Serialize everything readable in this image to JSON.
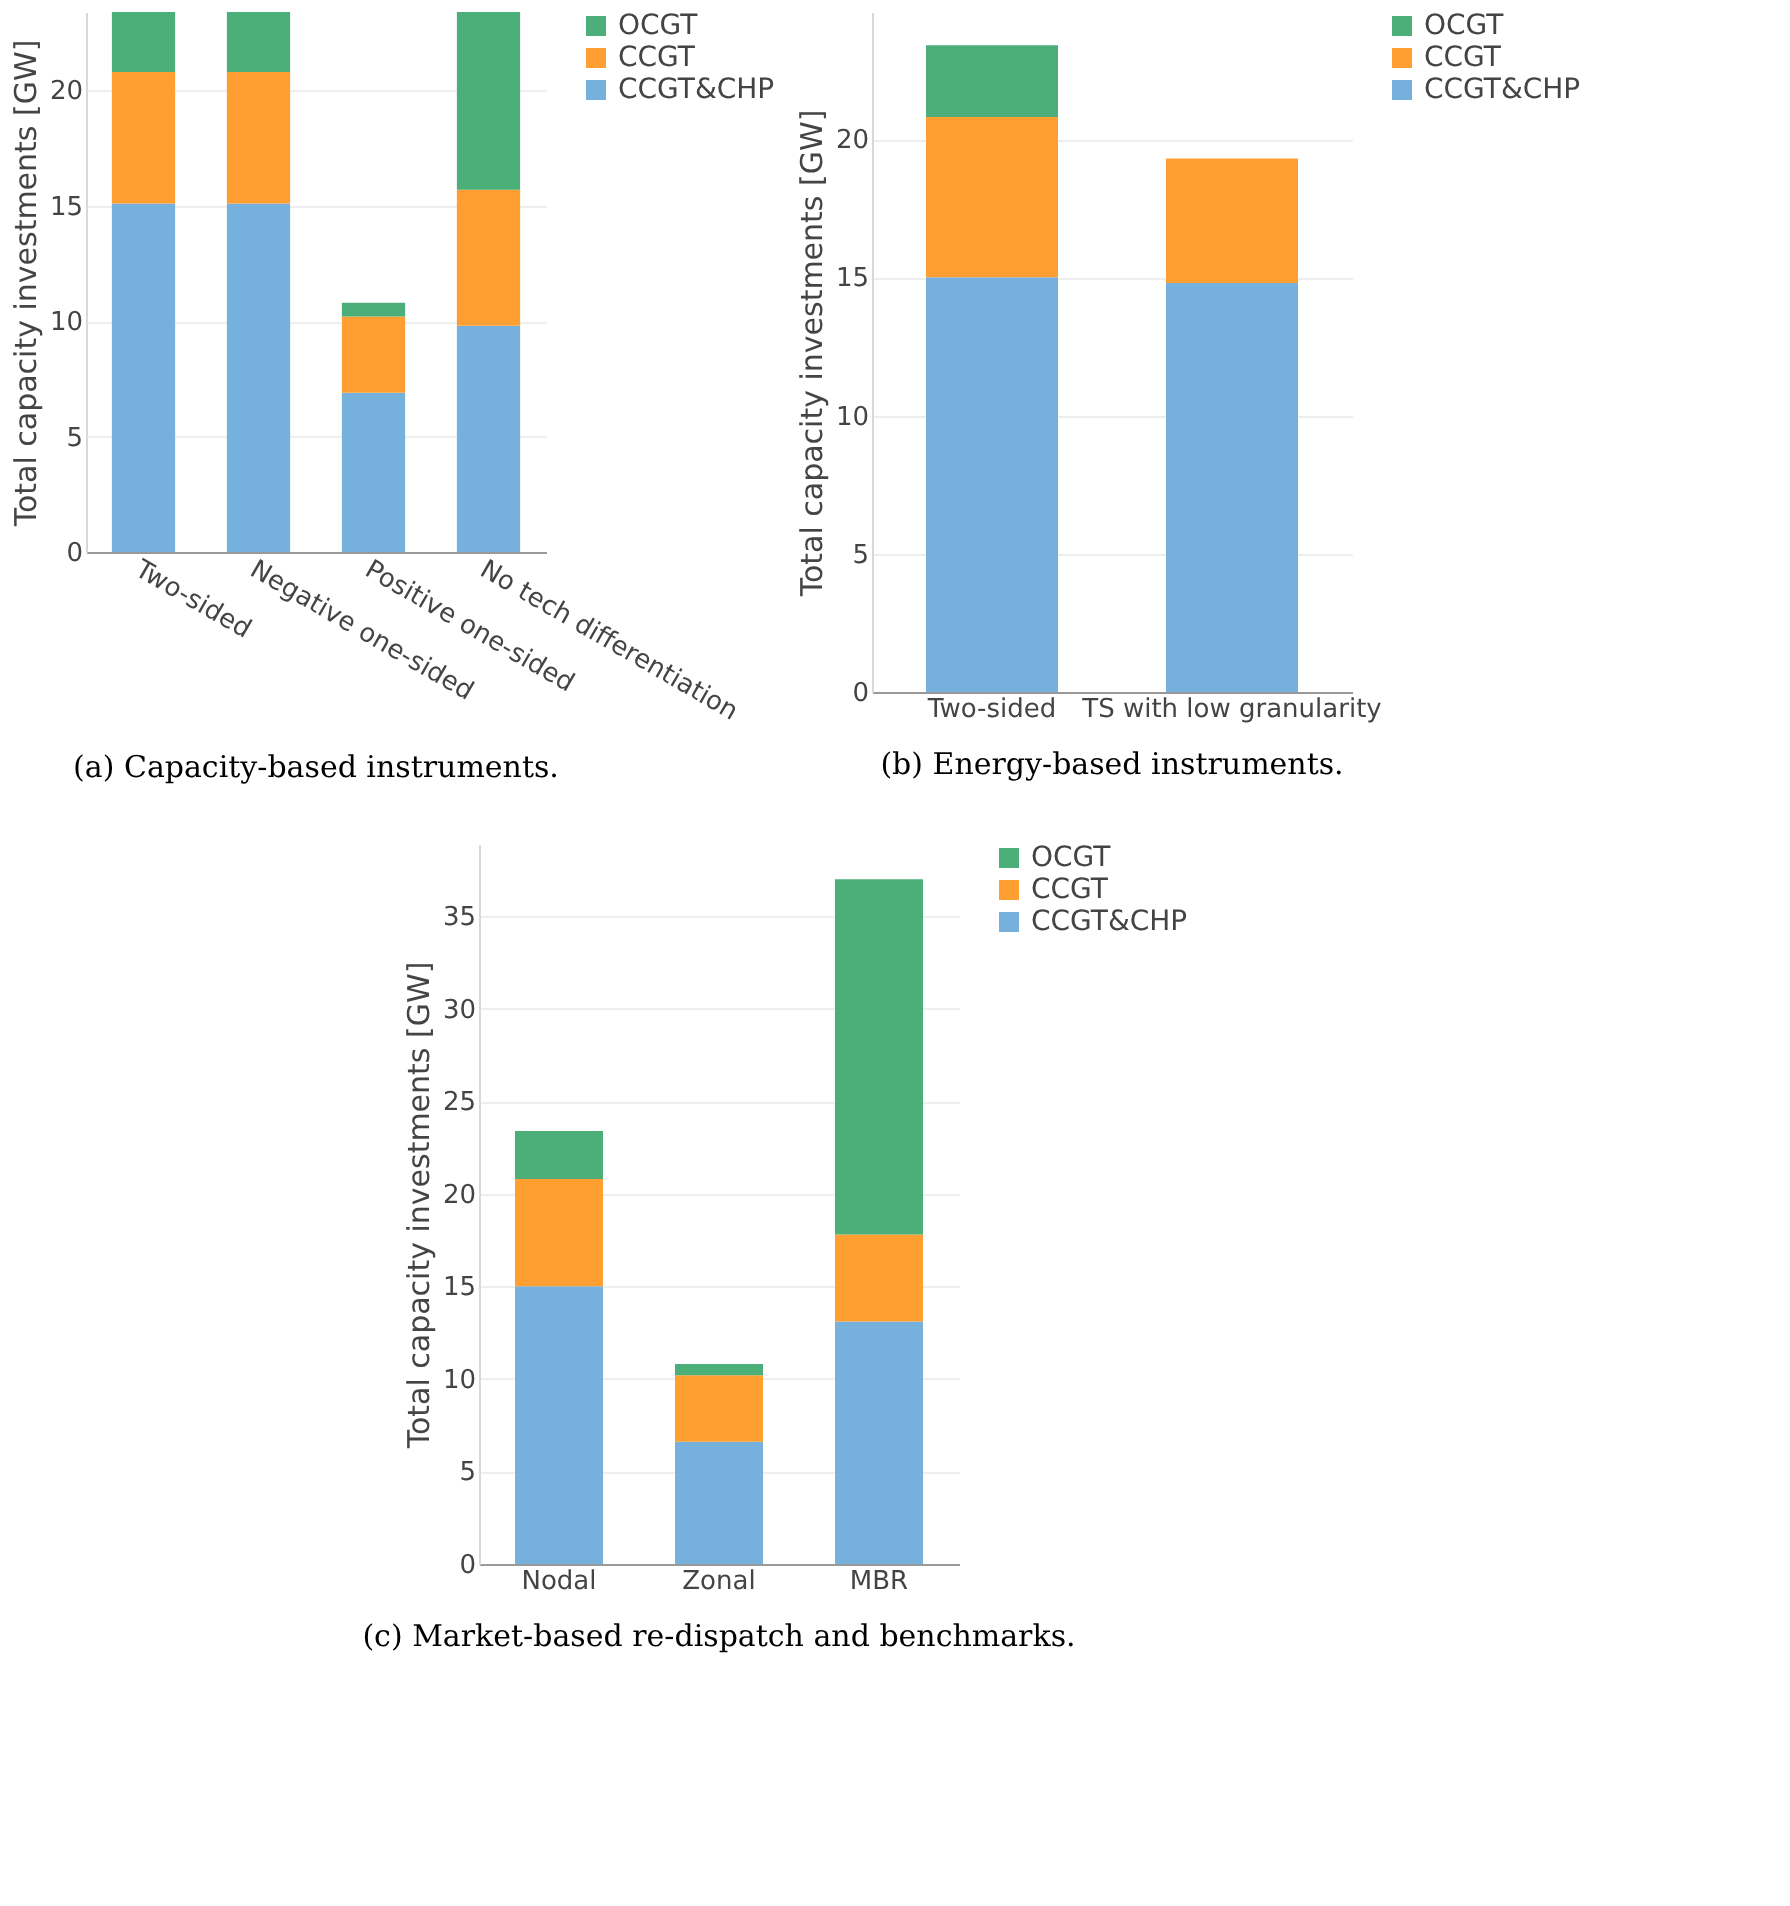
{
  "chart_data": [
    {
      "type": "bar",
      "stacked": true,
      "categories": [
        "Two-sided",
        "Negative one-sided",
        "Positive one-sided",
        "No tech differentiation"
      ],
      "ylabel": "Total capacity investments [GW]",
      "ylim": [
        0,
        23.4
      ],
      "yticks": [
        0,
        5,
        10,
        15,
        20
      ],
      "grid": "y",
      "legend": "top right",
      "annotations": [
        "(a) Capacity-based instruments."
      ],
      "series": [
        {
          "name": "CCGT&CHP",
          "color": "#76b0dc",
          "values": [
            15.1,
            15.1,
            6.9,
            9.8
          ]
        },
        {
          "name": "CCGT",
          "color": "#ff9f32",
          "values": [
            5.7,
            5.7,
            3.3,
            5.9
          ]
        },
        {
          "name": "OCGT",
          "color": "#4caf7a",
          "values": [
            2.6,
            2.6,
            0.6,
            7.7
          ]
        }
      ]
    },
    {
      "type": "bar",
      "stacked": true,
      "categories": [
        "Two-sided",
        "TS with low granularity"
      ],
      "ylabel": "Total capacity investments [GW]",
      "ylim": [
        0,
        24.6
      ],
      "yticks": [
        0,
        5,
        10,
        15,
        20
      ],
      "grid": "y",
      "legend": "top right",
      "annotations": [
        "(b) Energy-based instruments."
      ],
      "series": [
        {
          "name": "CCGT&CHP",
          "color": "#76b0dc",
          "values": [
            15.0,
            14.8
          ]
        },
        {
          "name": "CCGT",
          "color": "#ff9f32",
          "values": [
            5.8,
            4.5
          ]
        },
        {
          "name": "OCGT",
          "color": "#4caf7a",
          "values": [
            2.6,
            0
          ]
        }
      ]
    },
    {
      "type": "bar",
      "stacked": true,
      "categories": [
        "Nodal",
        "Zonal",
        "MBR"
      ],
      "ylabel": "Total capacity investments [GW]",
      "ylim": [
        0,
        38.9
      ],
      "yticks": [
        0,
        5,
        10,
        15,
        20,
        25,
        30,
        35
      ],
      "grid": "y",
      "legend": "top right",
      "annotations": [
        "(c) Market-based re-dispatch and benchmarks."
      ],
      "series": [
        {
          "name": "CCGT&CHP",
          "color": "#76b0dc",
          "values": [
            15.0,
            6.6,
            13.1
          ]
        },
        {
          "name": "CCGT",
          "color": "#ff9f32",
          "values": [
            5.8,
            3.6,
            4.7
          ]
        },
        {
          "name": "OCGT",
          "color": "#4caf7a",
          "values": [
            2.6,
            0.6,
            19.2
          ]
        }
      ]
    }
  ]
}
